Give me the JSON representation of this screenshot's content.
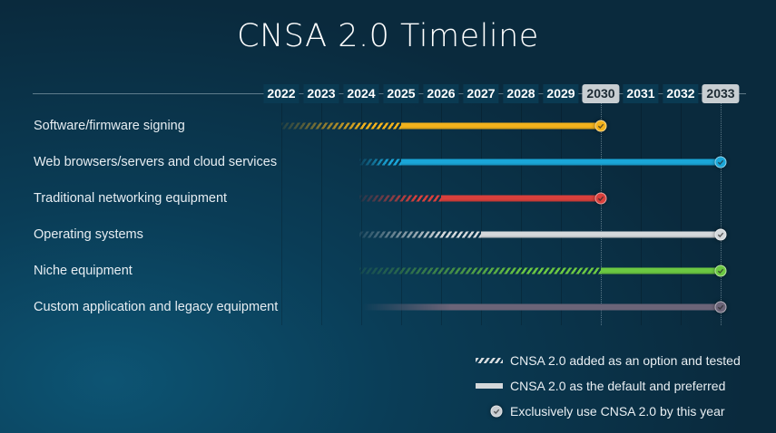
{
  "chart_data": {
    "type": "bar",
    "title": "CNSA 2.0 Timeline",
    "years": [
      "2022",
      "2023",
      "2024",
      "2025",
      "2026",
      "2027",
      "2028",
      "2029",
      "2030",
      "2031",
      "2032",
      "2033"
    ],
    "highlighted_years": [
      "2030",
      "2033"
    ],
    "series": [
      {
        "name": "Software/firmware signing",
        "color": "#f2b21c",
        "option_start": 2022,
        "default_start": 2025,
        "exclusive_by": 2030
      },
      {
        "name": "Web browsers/servers and cloud services",
        "color": "#1aa6d8",
        "option_start": 2024,
        "default_start": 2025,
        "exclusive_by": 2033
      },
      {
        "name": "Traditional networking equipment",
        "color": "#d9403c",
        "option_start": 2024,
        "default_start": 2026,
        "exclusive_by": 2030
      },
      {
        "name": "Operating systems",
        "color": "#d4d8db",
        "option_start": 2024,
        "default_start": 2027,
        "exclusive_by": 2033
      },
      {
        "name": "Niche equipment",
        "color": "#6cc842",
        "option_start": 2024,
        "default_start": 2030,
        "exclusive_by": 2033
      },
      {
        "name": "Custom application and legacy equipment",
        "color": "#6b6478",
        "option_start": null,
        "default_start": 2024,
        "exclusive_by": 2033
      }
    ],
    "legend": [
      {
        "type": "hatched",
        "label": "CNSA 2.0 added as an option and tested"
      },
      {
        "type": "solid",
        "label": "CNSA 2.0 as the default and preferred"
      },
      {
        "type": "check",
        "label": "Exclusively use CNSA 2.0 by this year"
      }
    ],
    "legend_position": "bottom-right"
  }
}
